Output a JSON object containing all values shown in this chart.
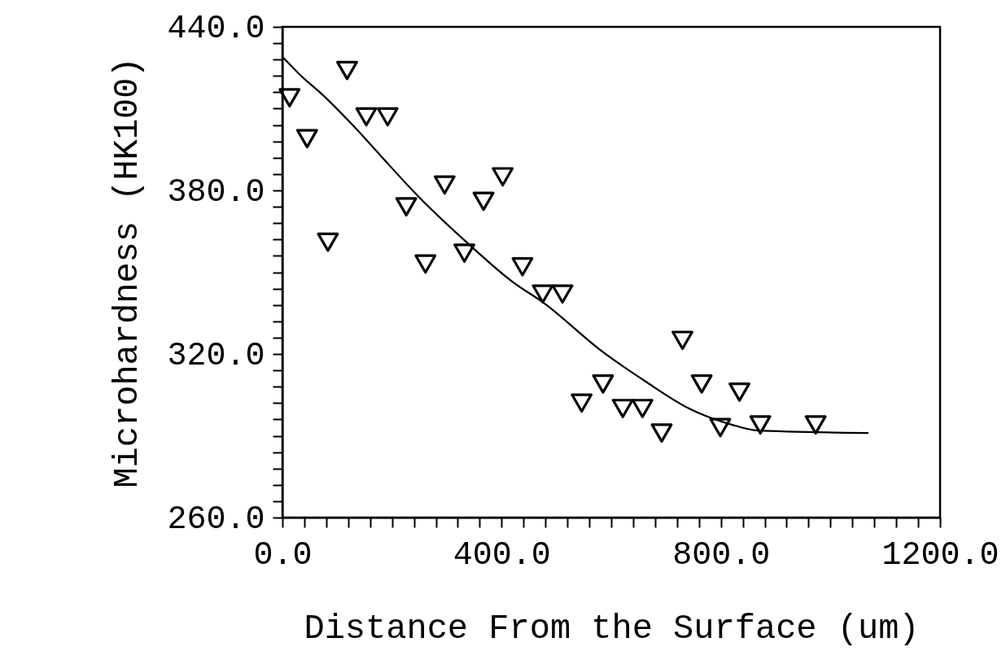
{
  "chart_data": {
    "type": "scatter",
    "xlabel": "Distance From the Surface (um)",
    "ylabel": "Microhardness (HK100)",
    "xlim": [
      0,
      1200
    ],
    "ylim": [
      260,
      440
    ],
    "xticks": [
      {
        "value": 0,
        "label": "0.0"
      },
      {
        "value": 40,
        "label": null
      },
      {
        "value": 80,
        "label": null
      },
      {
        "value": 120,
        "label": null
      },
      {
        "value": 160,
        "label": null
      },
      {
        "value": 200,
        "label": null
      },
      {
        "value": 240,
        "label": null
      },
      {
        "value": 280,
        "label": null
      },
      {
        "value": 320,
        "label": null
      },
      {
        "value": 360,
        "label": null
      },
      {
        "value": 400,
        "label": "400.0"
      },
      {
        "value": 440,
        "label": null
      },
      {
        "value": 480,
        "label": null
      },
      {
        "value": 520,
        "label": null
      },
      {
        "value": 560,
        "label": null
      },
      {
        "value": 600,
        "label": null
      },
      {
        "value": 640,
        "label": null
      },
      {
        "value": 680,
        "label": null
      },
      {
        "value": 720,
        "label": null
      },
      {
        "value": 760,
        "label": null
      },
      {
        "value": 800,
        "label": "800.0"
      },
      {
        "value": 840,
        "label": null
      },
      {
        "value": 880,
        "label": null
      },
      {
        "value": 920,
        "label": null
      },
      {
        "value": 960,
        "label": null
      },
      {
        "value": 1000,
        "label": null
      },
      {
        "value": 1040,
        "label": null
      },
      {
        "value": 1080,
        "label": null
      },
      {
        "value": 1120,
        "label": null
      },
      {
        "value": 1160,
        "label": null
      },
      {
        "value": 1200,
        "label": "1200.0"
      }
    ],
    "yticks": [
      {
        "value": 260,
        "label": "260.0"
      },
      {
        "value": 266,
        "label": null
      },
      {
        "value": 272,
        "label": null
      },
      {
        "value": 278,
        "label": null
      },
      {
        "value": 284,
        "label": null
      },
      {
        "value": 290,
        "label": null
      },
      {
        "value": 296,
        "label": null
      },
      {
        "value": 302,
        "label": null
      },
      {
        "value": 308,
        "label": null
      },
      {
        "value": 314,
        "label": null
      },
      {
        "value": 320,
        "label": "320.0"
      },
      {
        "value": 326,
        "label": null
      },
      {
        "value": 332,
        "label": null
      },
      {
        "value": 338,
        "label": null
      },
      {
        "value": 344,
        "label": null
      },
      {
        "value": 350,
        "label": null
      },
      {
        "value": 356,
        "label": null
      },
      {
        "value": 362,
        "label": null
      },
      {
        "value": 368,
        "label": null
      },
      {
        "value": 374,
        "label": null
      },
      {
        "value": 380,
        "label": "380.0"
      },
      {
        "value": 386,
        "label": null
      },
      {
        "value": 392,
        "label": null
      },
      {
        "value": 398,
        "label": null
      },
      {
        "value": 404,
        "label": null
      },
      {
        "value": 410,
        "label": null
      },
      {
        "value": 416,
        "label": null
      },
      {
        "value": 422,
        "label": null
      },
      {
        "value": 428,
        "label": null
      },
      {
        "value": 434,
        "label": null
      },
      {
        "value": 440,
        "label": "440.0"
      }
    ],
    "series": [
      {
        "color": "#000000",
        "marker": "triangle",
        "x": [
          13,
          45,
          83,
          118,
          153,
          192,
          226,
          261,
          296,
          332,
          367,
          402,
          438,
          475,
          511,
          546,
          585,
          621,
          657,
          692,
          730,
          765,
          799,
          834,
          872,
          973
        ],
        "values": [
          414,
          399,
          361,
          424,
          407,
          407,
          374,
          353,
          382,
          357,
          376,
          385,
          352,
          342,
          342,
          302,
          309,
          300,
          300,
          291,
          325,
          309,
          293,
          306,
          294,
          294
        ]
      },
      {
        "type": "line",
        "color": "#000000",
        "marker": "none",
        "line_style": "solid",
        "x": [
          0,
          29,
          79,
          128,
          178,
          247,
          336,
          423,
          475,
          583,
          662,
          742,
          821,
          864,
          1068
        ],
        "values": [
          429,
          423,
          414,
          404,
          393,
          378,
          361,
          346,
          339,
          321,
          310,
          300,
          294,
          292,
          291
        ]
      }
    ]
  }
}
